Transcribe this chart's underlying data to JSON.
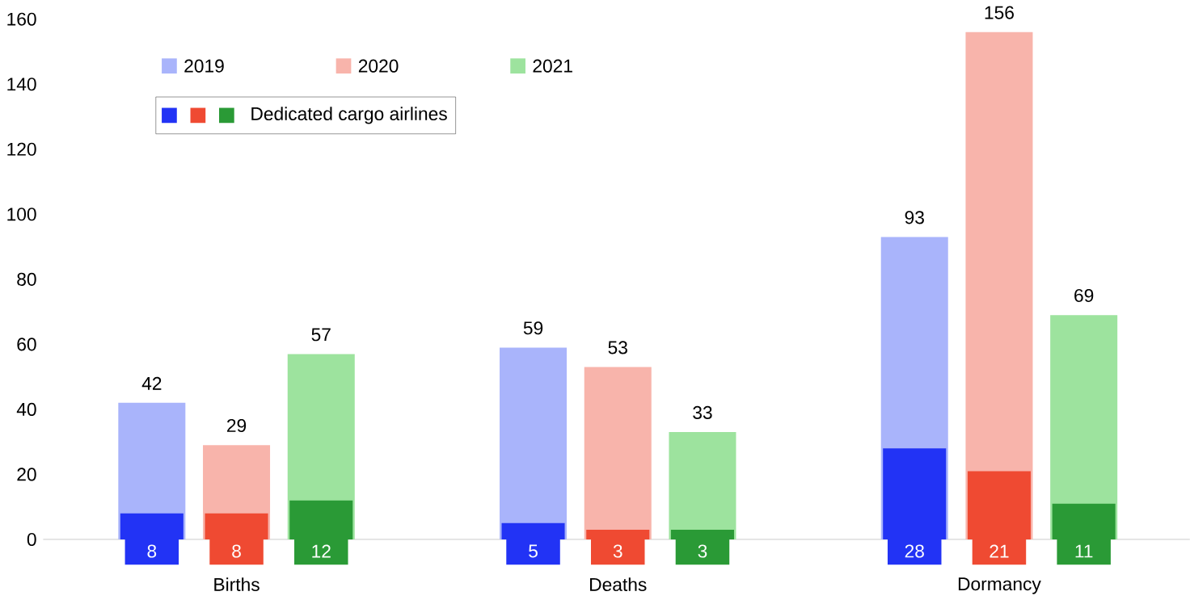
{
  "chart_data": {
    "type": "bar",
    "categories": [
      "Births",
      "Deaths",
      "Dormancy"
    ],
    "series": [
      {
        "name": "2019",
        "color": "#a9b4fb",
        "values": [
          42,
          59,
          93
        ]
      },
      {
        "name": "2020",
        "color": "#f8b4ab",
        "values": [
          29,
          53,
          156
        ]
      },
      {
        "name": "2021",
        "color": "#9de39e",
        "values": [
          57,
          33,
          69
        ]
      },
      {
        "color": "#2233f5",
        "values": [
          8,
          5,
          28
        ]
      },
      {
        "color": "#ef4a32",
        "values": [
          8,
          3,
          21
        ]
      },
      {
        "name": "Dedicated cargo airlines",
        "color": "#2a9a36",
        "values": [
          12,
          3,
          11
        ]
      }
    ],
    "ylim": [
      0,
      160
    ],
    "yticks": [
      0,
      20,
      40,
      60,
      80,
      100,
      120,
      140,
      160
    ],
    "data_labels": true,
    "legend": "top left",
    "grid": false
  }
}
